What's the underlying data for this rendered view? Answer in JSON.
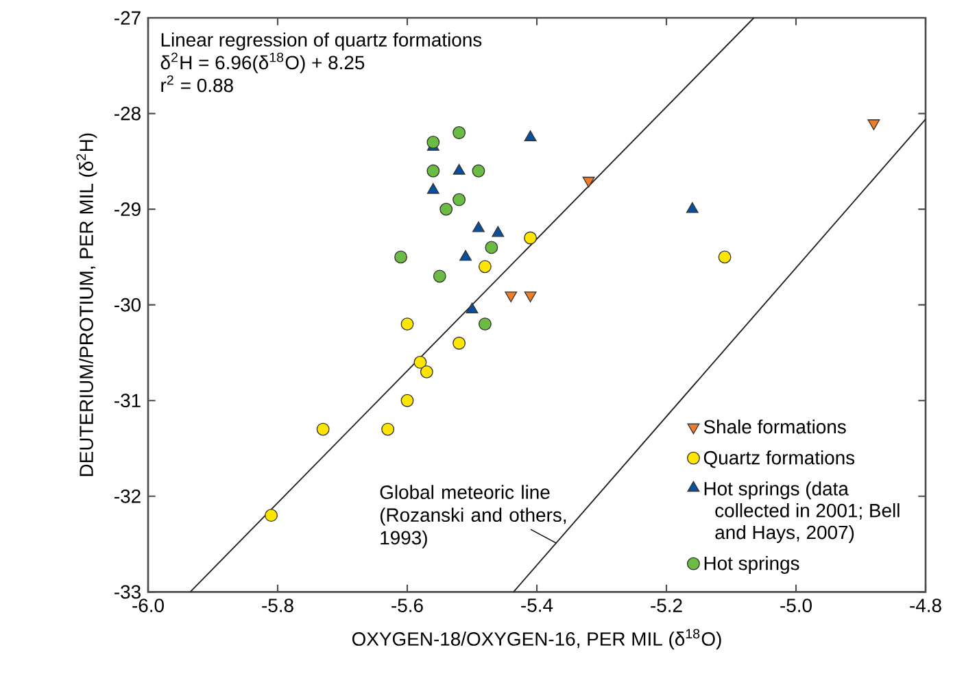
{
  "chart_data": {
    "type": "scatter",
    "xlabel": "OXYGEN-18/OXYGEN-16, PER MIL (δ$^{18}$O)",
    "ylabel": "DEUTERIUM/PROTIUM, PER MIL (δ$^{2}$H)",
    "xlim": [
      -6.0,
      -4.8
    ],
    "xticks": [
      {
        "value": -6.0,
        "label": "-6.0"
      },
      {
        "value": -5.8,
        "label": "-5.8"
      },
      {
        "value": -5.6,
        "label": "-5.6"
      },
      {
        "value": -5.4,
        "label": "-5.4"
      },
      {
        "value": -5.2,
        "label": "-5.2"
      },
      {
        "value": -5.0,
        "label": "-5.0"
      },
      {
        "value": -4.8,
        "label": "-4.8"
      }
    ],
    "ylim": [
      -33,
      -27
    ],
    "yticks": [
      -33,
      -32,
      -31,
      -30,
      -29,
      -28,
      -27
    ],
    "legend": "bottom right",
    "series": [
      {
        "name": "Shale formations",
        "color": "#ee7d2a",
        "marker": "triangle_down",
        "x": [
          -5.44,
          -5.41,
          -5.32,
          -4.88
        ],
        "values": [
          -29.9,
          -29.9,
          -28.7,
          -28.1
        ]
      },
      {
        "name": "Quartz formations",
        "color": "#ffe600",
        "marker": "circle",
        "x": [
          -5.41,
          -5.48,
          -5.6,
          -5.52,
          -5.58,
          -5.57,
          -5.6,
          -5.73,
          -5.63,
          -5.81,
          -5.11
        ],
        "values": [
          -29.3,
          -29.6,
          -30.2,
          -30.4,
          -30.6,
          -30.7,
          -31.0,
          -31.3,
          -31.3,
          -32.2,
          -29.5
        ]
      },
      {
        "name": "Hot springs (data collected in 2001; Bell and Hays, 2007)",
        "color": "#0a4f9e",
        "marker": "triangle",
        "x": [
          -5.56,
          -5.41,
          -5.52,
          -5.56,
          -5.49,
          -5.46,
          -5.51,
          -5.5,
          -5.16
        ],
        "values": [
          -28.35,
          -28.25,
          -28.6,
          -28.8,
          -29.2,
          -29.25,
          -29.5,
          -30.05,
          -29.0
        ]
      },
      {
        "name": "Hot springs",
        "color": "#6cbb44",
        "marker": "circle",
        "x": [
          -5.56,
          -5.52,
          -5.56,
          -5.49,
          -5.52,
          -5.54,
          -5.47,
          -5.61,
          -5.55,
          -5.48
        ],
        "values": [
          -28.3,
          -28.2,
          -28.6,
          -28.6,
          -28.9,
          -29.0,
          -29.4,
          -29.5,
          -29.7,
          -30.2
        ]
      },
      {
        "type": "line",
        "color": "#231f20",
        "x": [
          -5.935,
          -5.065
        ],
        "values": [
          -33.0,
          -27.0
        ]
      },
      {
        "type": "line",
        "color": "#231f20",
        "x": [
          -5.436,
          -4.8
        ],
        "values": [
          -33.0,
          -28.06
        ]
      }
    ],
    "annotations": [
      "Linear regression of quartz formations",
      "δ$^{2}$H = 6.96(δ$^{18}$O) + 8.25",
      "r$^{2}$ = 0.88",
      {
        "text": "Global meteoric line (Rozanski and others, 1993)",
        "x": -5.37,
        "y": -32.49
      }
    ]
  }
}
